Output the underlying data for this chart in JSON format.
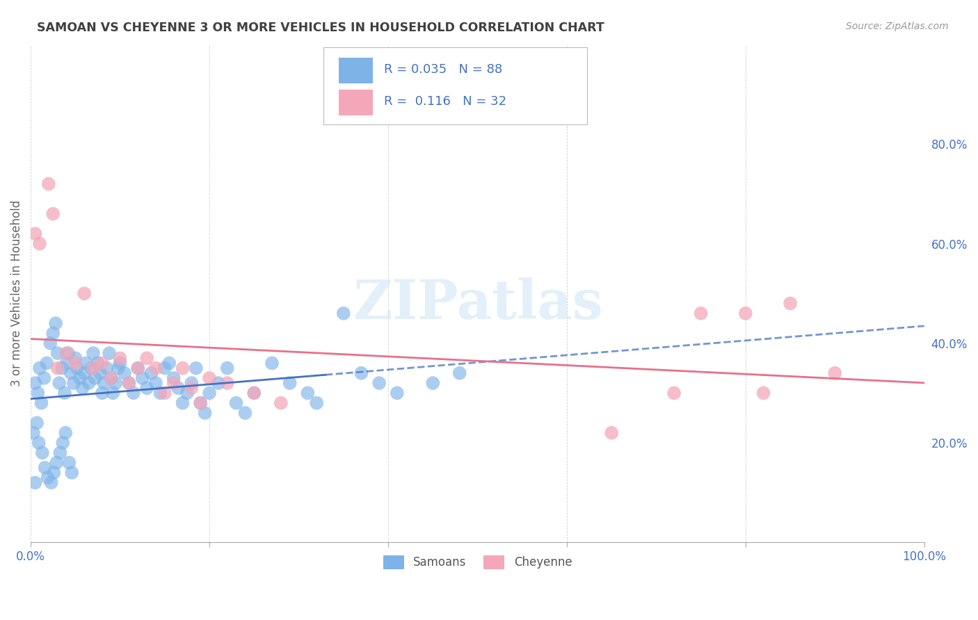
{
  "title": "SAMOAN VS CHEYENNE 3 OR MORE VEHICLES IN HOUSEHOLD CORRELATION CHART",
  "source": "Source: ZipAtlas.com",
  "ylabel": "3 or more Vehicles in Household",
  "watermark": "ZIPatlas",
  "legend_label1": "Samoans",
  "legend_label2": "Cheyenne",
  "r1": "0.035",
  "n1": "88",
  "r2": "0.116",
  "n2": "32",
  "xlim": [
    0.0,
    1.0
  ],
  "ylim": [
    0.0,
    1.0
  ],
  "yticks": [
    0.2,
    0.4,
    0.6,
    0.8
  ],
  "ytick_labels": [
    "20.0%",
    "40.0%",
    "60.0%",
    "80.0%"
  ],
  "xticks": [
    0.0,
    0.2,
    0.4,
    0.6,
    0.8,
    1.0
  ],
  "xtick_labels": [
    "0.0%",
    "",
    "",
    "",
    "",
    "100.0%"
  ],
  "color_blue": "#7eb3e8",
  "color_pink": "#f4a7b9",
  "trend_blue": "#4472c4",
  "trend_pink": "#e8708a",
  "title_color": "#404040",
  "axis_label_color": "#4472c4",
  "legend_text_color": "#4472c4",
  "samoans_x": [
    0.01,
    0.005,
    0.008,
    0.012,
    0.015,
    0.018,
    0.022,
    0.025,
    0.028,
    0.03,
    0.032,
    0.035,
    0.038,
    0.04,
    0.042,
    0.045,
    0.048,
    0.05,
    0.052,
    0.055,
    0.058,
    0.06,
    0.062,
    0.065,
    0.068,
    0.07,
    0.072,
    0.075,
    0.078,
    0.08,
    0.082,
    0.085,
    0.088,
    0.09,
    0.092,
    0.095,
    0.098,
    0.1,
    0.105,
    0.11,
    0.115,
    0.12,
    0.125,
    0.13,
    0.135,
    0.14,
    0.145,
    0.15,
    0.155,
    0.16,
    0.165,
    0.17,
    0.175,
    0.18,
    0.185,
    0.19,
    0.195,
    0.2,
    0.21,
    0.22,
    0.23,
    0.24,
    0.25,
    0.27,
    0.29,
    0.31,
    0.32,
    0.35,
    0.37,
    0.39,
    0.41,
    0.45,
    0.48,
    0.003,
    0.007,
    0.009,
    0.013,
    0.016,
    0.019,
    0.023,
    0.026,
    0.029,
    0.033,
    0.036,
    0.039,
    0.043,
    0.046,
    0.005
  ],
  "samoans_y": [
    0.35,
    0.32,
    0.3,
    0.28,
    0.33,
    0.36,
    0.4,
    0.42,
    0.44,
    0.38,
    0.32,
    0.35,
    0.3,
    0.36,
    0.38,
    0.34,
    0.32,
    0.37,
    0.35,
    0.33,
    0.31,
    0.34,
    0.36,
    0.32,
    0.35,
    0.38,
    0.33,
    0.36,
    0.34,
    0.3,
    0.32,
    0.35,
    0.38,
    0.33,
    0.3,
    0.32,
    0.35,
    0.36,
    0.34,
    0.32,
    0.3,
    0.35,
    0.33,
    0.31,
    0.34,
    0.32,
    0.3,
    0.35,
    0.36,
    0.33,
    0.31,
    0.28,
    0.3,
    0.32,
    0.35,
    0.28,
    0.26,
    0.3,
    0.32,
    0.35,
    0.28,
    0.26,
    0.3,
    0.36,
    0.32,
    0.3,
    0.28,
    0.46,
    0.34,
    0.32,
    0.3,
    0.32,
    0.34,
    0.22,
    0.24,
    0.2,
    0.18,
    0.15,
    0.13,
    0.12,
    0.14,
    0.16,
    0.18,
    0.2,
    0.22,
    0.16,
    0.14,
    0.12
  ],
  "cheyenne_x": [
    0.005,
    0.01,
    0.02,
    0.025,
    0.03,
    0.04,
    0.05,
    0.06,
    0.07,
    0.08,
    0.09,
    0.1,
    0.11,
    0.12,
    0.13,
    0.14,
    0.15,
    0.16,
    0.17,
    0.18,
    0.19,
    0.2,
    0.22,
    0.25,
    0.28,
    0.65,
    0.72,
    0.75,
    0.8,
    0.82,
    0.85,
    0.9
  ],
  "cheyenne_y": [
    0.62,
    0.6,
    0.72,
    0.66,
    0.35,
    0.38,
    0.36,
    0.5,
    0.35,
    0.36,
    0.33,
    0.37,
    0.32,
    0.35,
    0.37,
    0.35,
    0.3,
    0.32,
    0.35,
    0.31,
    0.28,
    0.33,
    0.32,
    0.3,
    0.28,
    0.22,
    0.3,
    0.46,
    0.46,
    0.3,
    0.48,
    0.34
  ]
}
